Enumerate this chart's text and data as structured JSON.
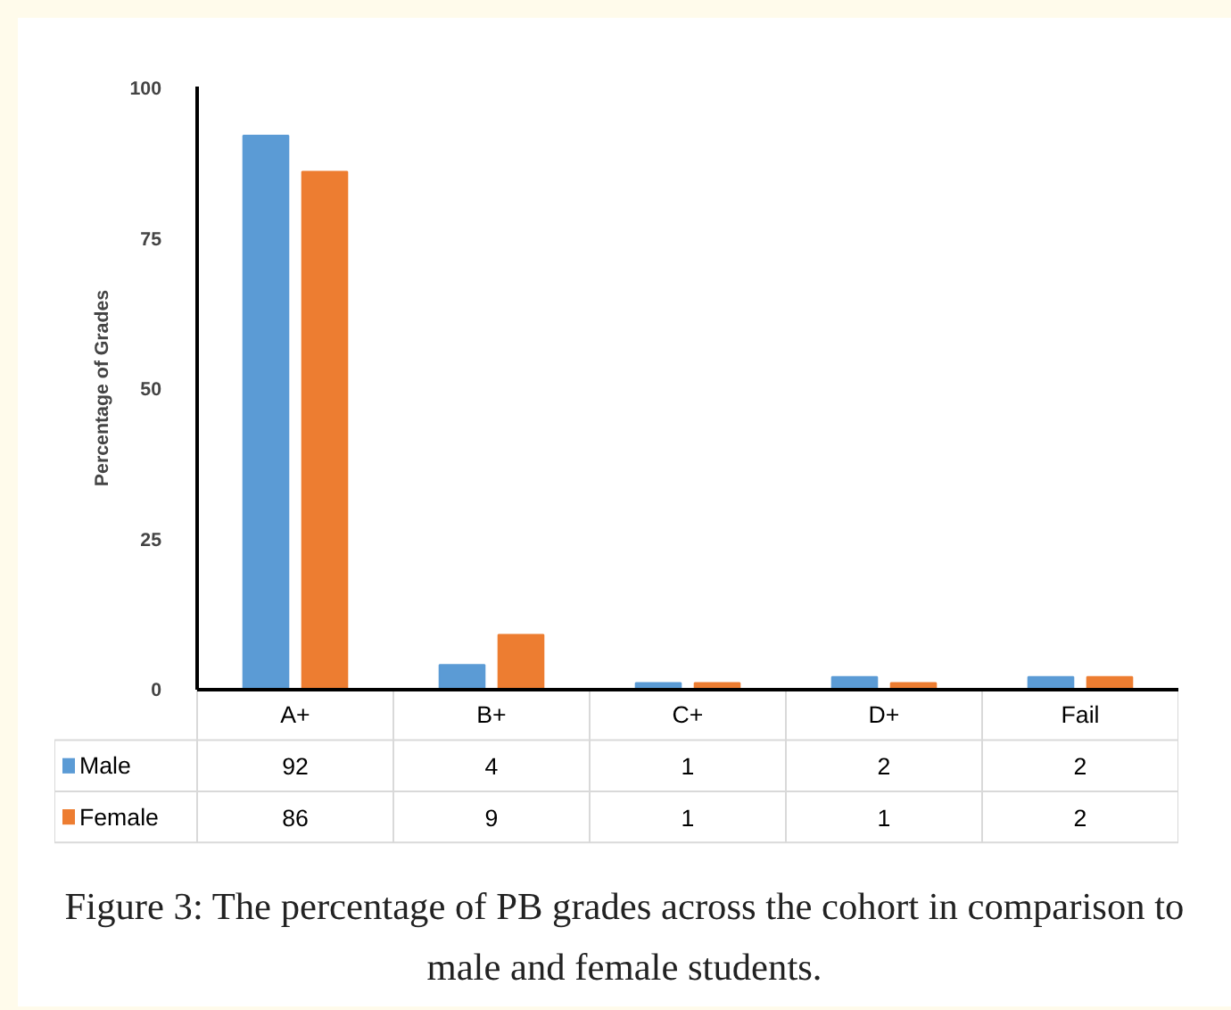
{
  "chart_data": {
    "type": "bar",
    "ylabel": "Percentage of Grades",
    "categories": [
      "A+",
      "B+",
      "C+",
      "D+",
      "Fail"
    ],
    "series": [
      {
        "name": "Male",
        "color": "#5b9bd5",
        "values": [
          92,
          4,
          1,
          2,
          2
        ]
      },
      {
        "name": "Female",
        "color": "#ed7d31",
        "values": [
          86,
          9,
          1,
          1,
          2
        ]
      }
    ],
    "ylim": [
      0,
      100
    ],
    "yticks": [
      0,
      25,
      50,
      75,
      100
    ],
    "grid": false,
    "legend": "bottom left",
    "data_labels": true,
    "annotations": [
      "Figure 3: The percentage of PB grades across the cohort in comparison to male and female students."
    ]
  }
}
